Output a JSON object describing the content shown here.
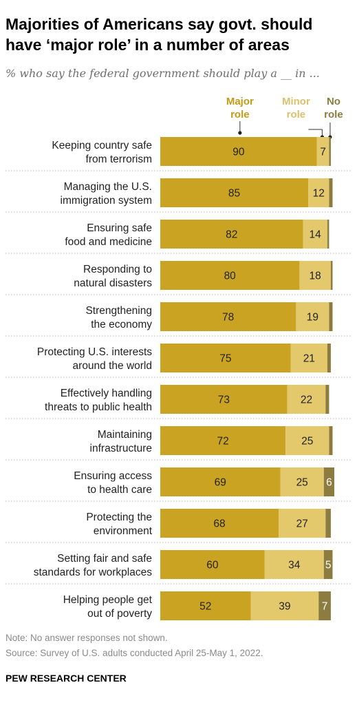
{
  "title": "Majorities of Americans say govt. should have ‘major role’ in a number of areas",
  "subtitle": "% who say the federal government should play a __ in ...",
  "note": "Note: No answer responses not shown.",
  "source": "Source: Survey of U.S. adults conducted April 25-May 1, 2022.",
  "branding": "PEW RESEARCH CENTER",
  "colors": {
    "major": "#c9a321",
    "minor": "#e3c96b",
    "none": "#8c7c3f",
    "major_header": "#c29b17",
    "minor_header": "#dcc16d",
    "none_header": "#8c7c3f",
    "divider": "#b3b3b3"
  },
  "chart_data": {
    "type": "bar",
    "orientation": "horizontal",
    "stacked": true,
    "xlim": [
      0,
      100
    ],
    "unit": "%",
    "categories": [
      "Keeping country safe from terrorism",
      "Managing the U.S. immigration system",
      "Ensuring safe food and medicine",
      "Responding to natural disasters",
      "Strengthening the economy",
      "Protecting U.S. interests around the world",
      "Effectively handling threats to public health",
      "Maintaining infrastructure",
      "Ensuring access to health care",
      "Protecting the environment",
      "Setting fair and safe standards for workplaces",
      "Helping people get out of poverty"
    ],
    "category_lines": [
      [
        "Keeping country safe",
        "from terrorism"
      ],
      [
        "Managing the U.S.",
        "immigration system"
      ],
      [
        "Ensuring safe",
        "food and medicine"
      ],
      [
        "Responding to",
        "natural disasters"
      ],
      [
        "Strengthening",
        "the economy"
      ],
      [
        "Protecting U.S. interests",
        "around the world"
      ],
      [
        "Effectively handling",
        "threats to public health"
      ],
      [
        "Maintaining",
        "infrastructure"
      ],
      [
        "Ensuring access",
        "to health care"
      ],
      [
        "Protecting the",
        "environment"
      ],
      [
        "Setting fair and safe",
        "standards for workplaces"
      ],
      [
        "Helping people get",
        "out of poverty"
      ]
    ],
    "series": [
      {
        "name": "Major role",
        "name_lines": [
          "Major",
          "role"
        ],
        "values": [
          90,
          85,
          82,
          80,
          78,
          75,
          73,
          72,
          69,
          68,
          60,
          52
        ],
        "labels": [
          "90",
          "85",
          "82",
          "80",
          "78",
          "75",
          "73",
          "72",
          "69",
          "68",
          "60",
          "52"
        ]
      },
      {
        "name": "Minor role",
        "name_lines": [
          "Minor",
          "role"
        ],
        "values": [
          7,
          12,
          14,
          18,
          19,
          21,
          22,
          25,
          25,
          27,
          34,
          39
        ],
        "labels": [
          "7",
          "12",
          "14",
          "18",
          "19",
          "21",
          "22",
          "25",
          "25",
          "27",
          "34",
          "39"
        ]
      },
      {
        "name": "No role",
        "name_lines": [
          "No",
          "role"
        ],
        "values": [
          1,
          2,
          1,
          1,
          2,
          2,
          2,
          2,
          6,
          3,
          5,
          7
        ],
        "labels": [
          "",
          "",
          "",
          "",
          "",
          "",
          "",
          "",
          "6",
          "",
          "5",
          "7"
        ]
      }
    ]
  }
}
